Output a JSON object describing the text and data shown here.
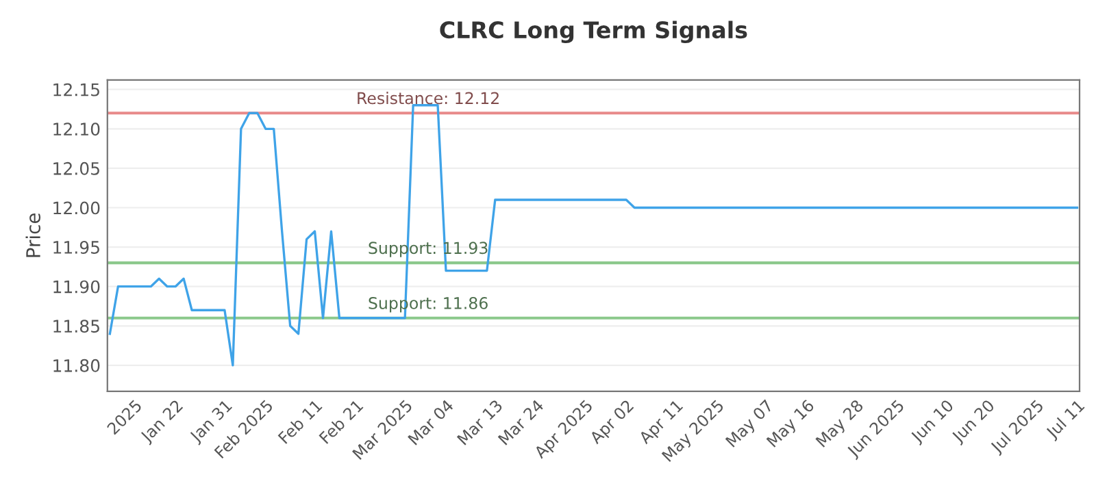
{
  "chart_data": {
    "type": "line",
    "title": "CLRC Long Term Signals",
    "ylabel": "Price",
    "categories": [
      null,
      null,
      null,
      "2025",
      null,
      null,
      null,
      null,
      "Jan 22",
      null,
      null,
      null,
      null,
      null,
      "Jan 31",
      null,
      null,
      null,
      null,
      "Feb 2025",
      null,
      null,
      null,
      null,
      null,
      "Feb 11",
      null,
      null,
      null,
      null,
      "Feb 21",
      null,
      null,
      null,
      null,
      null,
      "Mar 2025",
      null,
      null,
      null,
      null,
      "Mar 04",
      null,
      null,
      null,
      null,
      null,
      "Mar 13",
      null,
      null,
      null,
      null,
      "Mar 24",
      null,
      null,
      null,
      null,
      null,
      "Apr 2025",
      null,
      null,
      null,
      null,
      "Apr 02",
      null,
      null,
      null,
      null,
      null,
      "Apr 11",
      null,
      null,
      null,
      null,
      "May 2025",
      null,
      null,
      null,
      null,
      null,
      "May 07",
      null,
      null,
      null,
      null,
      "May 16",
      null,
      null,
      null,
      null,
      null,
      "May 28",
      null,
      null,
      null,
      null,
      "Jun 2025",
      null,
      null,
      null,
      null,
      null,
      "Jun 10",
      null,
      null,
      null,
      null,
      "Jun 20",
      null,
      null,
      null,
      null,
      null,
      "Jul 2025",
      null,
      null,
      null,
      null,
      "Jul 11"
    ],
    "series": [
      {
        "color": "#3fa3e8",
        "values": [
          11.84,
          11.9,
          11.9,
          11.9,
          11.9,
          11.9,
          11.91,
          11.9,
          11.9,
          11.91,
          11.87,
          11.87,
          11.87,
          11.87,
          11.87,
          11.8,
          12.1,
          12.12,
          12.12,
          12.1,
          12.1,
          11.97,
          11.85,
          11.84,
          11.96,
          11.97,
          11.86,
          11.97,
          11.86,
          11.86,
          11.86,
          11.86,
          11.86,
          11.86,
          11.86,
          11.86,
          11.86,
          12.13,
          12.13,
          12.13,
          12.13,
          11.92,
          11.92,
          11.92,
          11.92,
          11.92,
          11.92,
          12.01,
          12.01,
          12.01,
          12.01,
          12.01,
          12.01,
          12.01,
          12.01,
          12.01,
          12.01,
          12.01,
          12.01,
          12.01,
          12.01,
          12.01,
          12.01,
          12.01,
          12.0,
          12.0,
          12.0,
          12.0,
          12.0,
          12.0,
          12.0,
          12.0,
          12.0,
          12.0,
          12.0,
          12.0,
          12.0,
          12.0,
          12.0,
          12.0,
          12.0,
          12.0,
          12.0,
          12.0,
          12.0,
          12.0,
          12.0,
          12.0,
          12.0,
          12.0,
          12.0,
          12.0,
          12.0,
          12.0,
          12.0,
          12.0,
          12.0,
          12.0,
          12.0,
          12.0,
          12.0,
          12.0,
          12.0,
          12.0,
          12.0,
          12.0,
          12.0,
          12.0,
          12.0,
          12.0,
          12.0,
          12.0,
          12.0,
          12.0,
          12.0,
          12.0,
          12.0,
          12.0,
          12.0
        ]
      }
    ],
    "ylim": [
      11.767,
      12.162
    ],
    "yticks": [
      {
        "value": 11.8,
        "label": "11.80"
      },
      {
        "value": 11.85,
        "label": "11.85"
      },
      {
        "value": 11.9,
        "label": "11.90"
      },
      {
        "value": 11.95,
        "label": "11.95"
      },
      {
        "value": 12.0,
        "label": "12.00"
      },
      {
        "value": 12.05,
        "label": "12.05"
      },
      {
        "value": 12.1,
        "label": "12.10"
      },
      {
        "value": 12.15,
        "label": "12.15"
      }
    ],
    "grid": "y",
    "ref_lines": [
      {
        "axis": "y",
        "value": 12.12,
        "label": "Resistance: 12.12",
        "color": "#e88a8a"
      },
      {
        "axis": "y",
        "value": 11.93,
        "label": "Support: 11.93",
        "color": "#8cc98c"
      },
      {
        "axis": "y",
        "value": 11.86,
        "label": "Support: 11.86",
        "color": "#8cc98c"
      }
    ]
  }
}
